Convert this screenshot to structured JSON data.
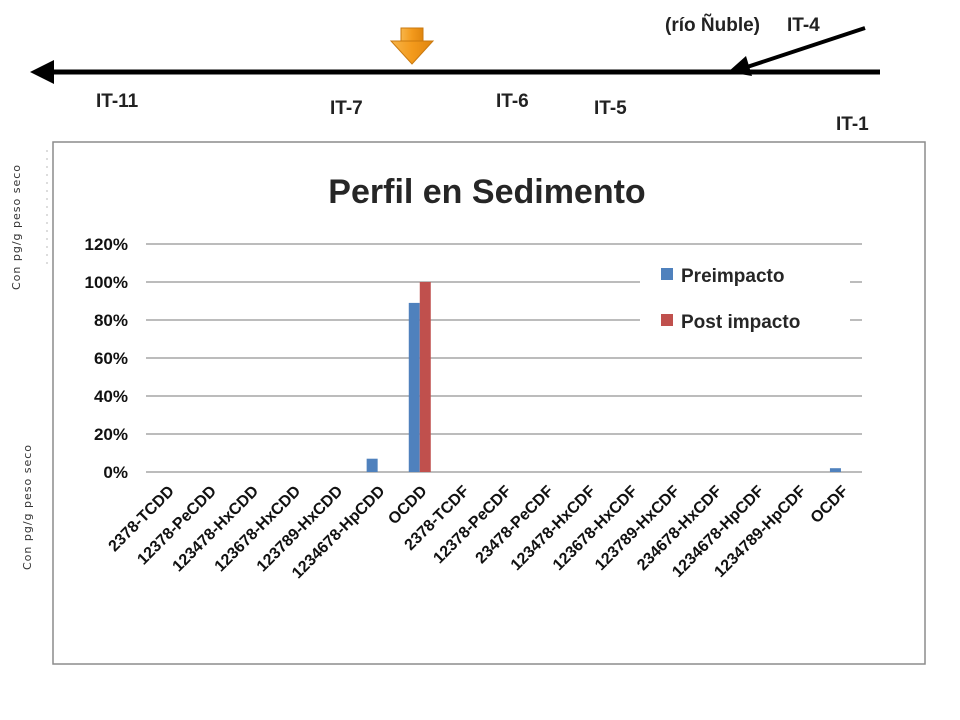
{
  "river": {
    "name": "(río Ñuble)",
    "stations": [
      "IT-11",
      "IT-7",
      "IT-6",
      "IT-5",
      "IT-1",
      "IT-4"
    ]
  },
  "side_labels": {
    "top": "Con pg/g peso seco",
    "bottom": "Con pg/g peso seco"
  },
  "colors": {
    "preimpacto": "#4F81BD",
    "post_impacto": "#C0504D",
    "marker": "#F5A023",
    "gridline": "#A6A6A6"
  },
  "chart_data": {
    "type": "bar",
    "title": "Perfil en Sedimento",
    "xlabel": "",
    "ylabel": "",
    "ylim": [
      0,
      120
    ],
    "yticks": [
      "0%",
      "20%",
      "40%",
      "60%",
      "80%",
      "100%",
      "120%"
    ],
    "grid": true,
    "legend_position": "right",
    "categories": [
      "2378-TCDD",
      "12378-PeCDD",
      "123478-HxCDD",
      "123678-HxCDD",
      "123789-HxCDD",
      "1234678-HpCDD",
      "OCDD",
      "2378-TCDF",
      "12378-PeCDF",
      "23478-PeCDF",
      "123478-HxCDF",
      "123678-HxCDF",
      "123789-HxCDF",
      "234678-HxCDF",
      "1234678-HpCDF",
      "1234789-HpCDF",
      "OCDF"
    ],
    "series": [
      {
        "name": "Preimpacto",
        "values": [
          0,
          0,
          0,
          0,
          0,
          7,
          89,
          0,
          0,
          0,
          0,
          0,
          0,
          0,
          0,
          0,
          2
        ]
      },
      {
        "name": "Post impacto",
        "values": [
          0,
          0,
          0,
          0,
          0,
          0,
          100,
          0,
          0,
          0,
          0,
          0,
          0,
          0,
          0,
          0,
          0
        ]
      }
    ]
  }
}
